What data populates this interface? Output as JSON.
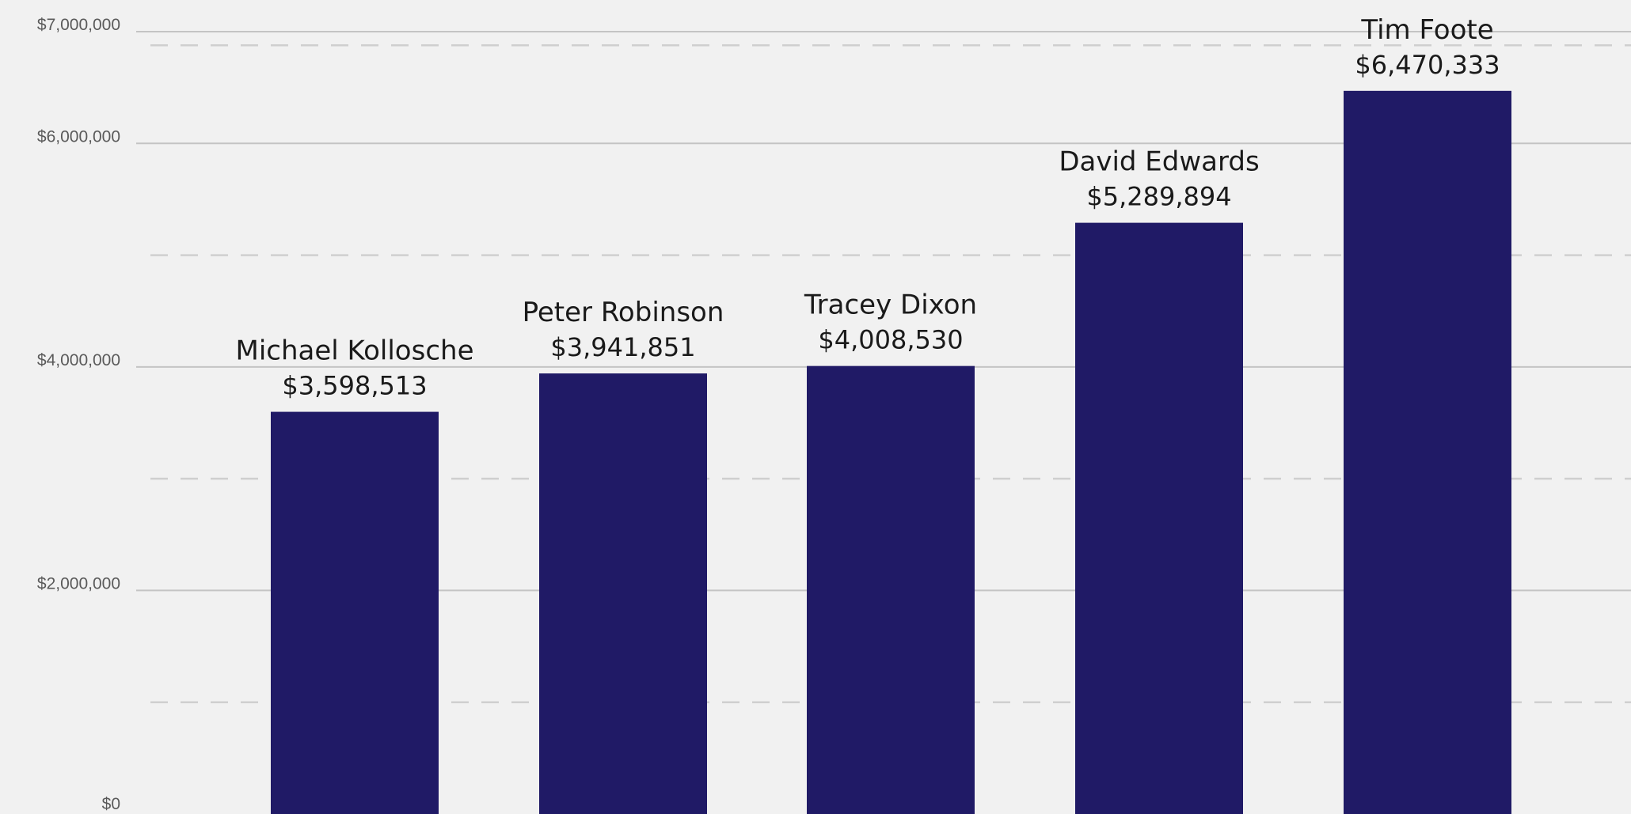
{
  "chart_data": {
    "type": "bar",
    "title": "",
    "xlabel": "",
    "ylabel": "",
    "categories": [
      "Michael Kollosche",
      "Peter Robinson",
      "Tracey Dixon",
      "David Edwards",
      "Tim Foote"
    ],
    "values": [
      3598513,
      3941851,
      4008530,
      5289894,
      6470333
    ],
    "value_labels": [
      "$3,598,513",
      "$3,941,851",
      "$4,008,530",
      "$5,289,894",
      "$6,470,333"
    ],
    "ylim": [
      0,
      7000000
    ],
    "y_ticks": [
      {
        "value": 0,
        "label": "$0"
      },
      {
        "value": 2000000,
        "label": "$2,000,000"
      },
      {
        "value": 4000000,
        "label": "$4,000,000"
      },
      {
        "value": 6000000,
        "label": "$6,000,000"
      },
      {
        "value": 7000000,
        "label": "$7,000,000"
      }
    ],
    "minor_gridlines": [
      1000000,
      3000000,
      5000000,
      6000000
    ],
    "grid": true,
    "legend": "none",
    "bar_color": "#201a66"
  }
}
